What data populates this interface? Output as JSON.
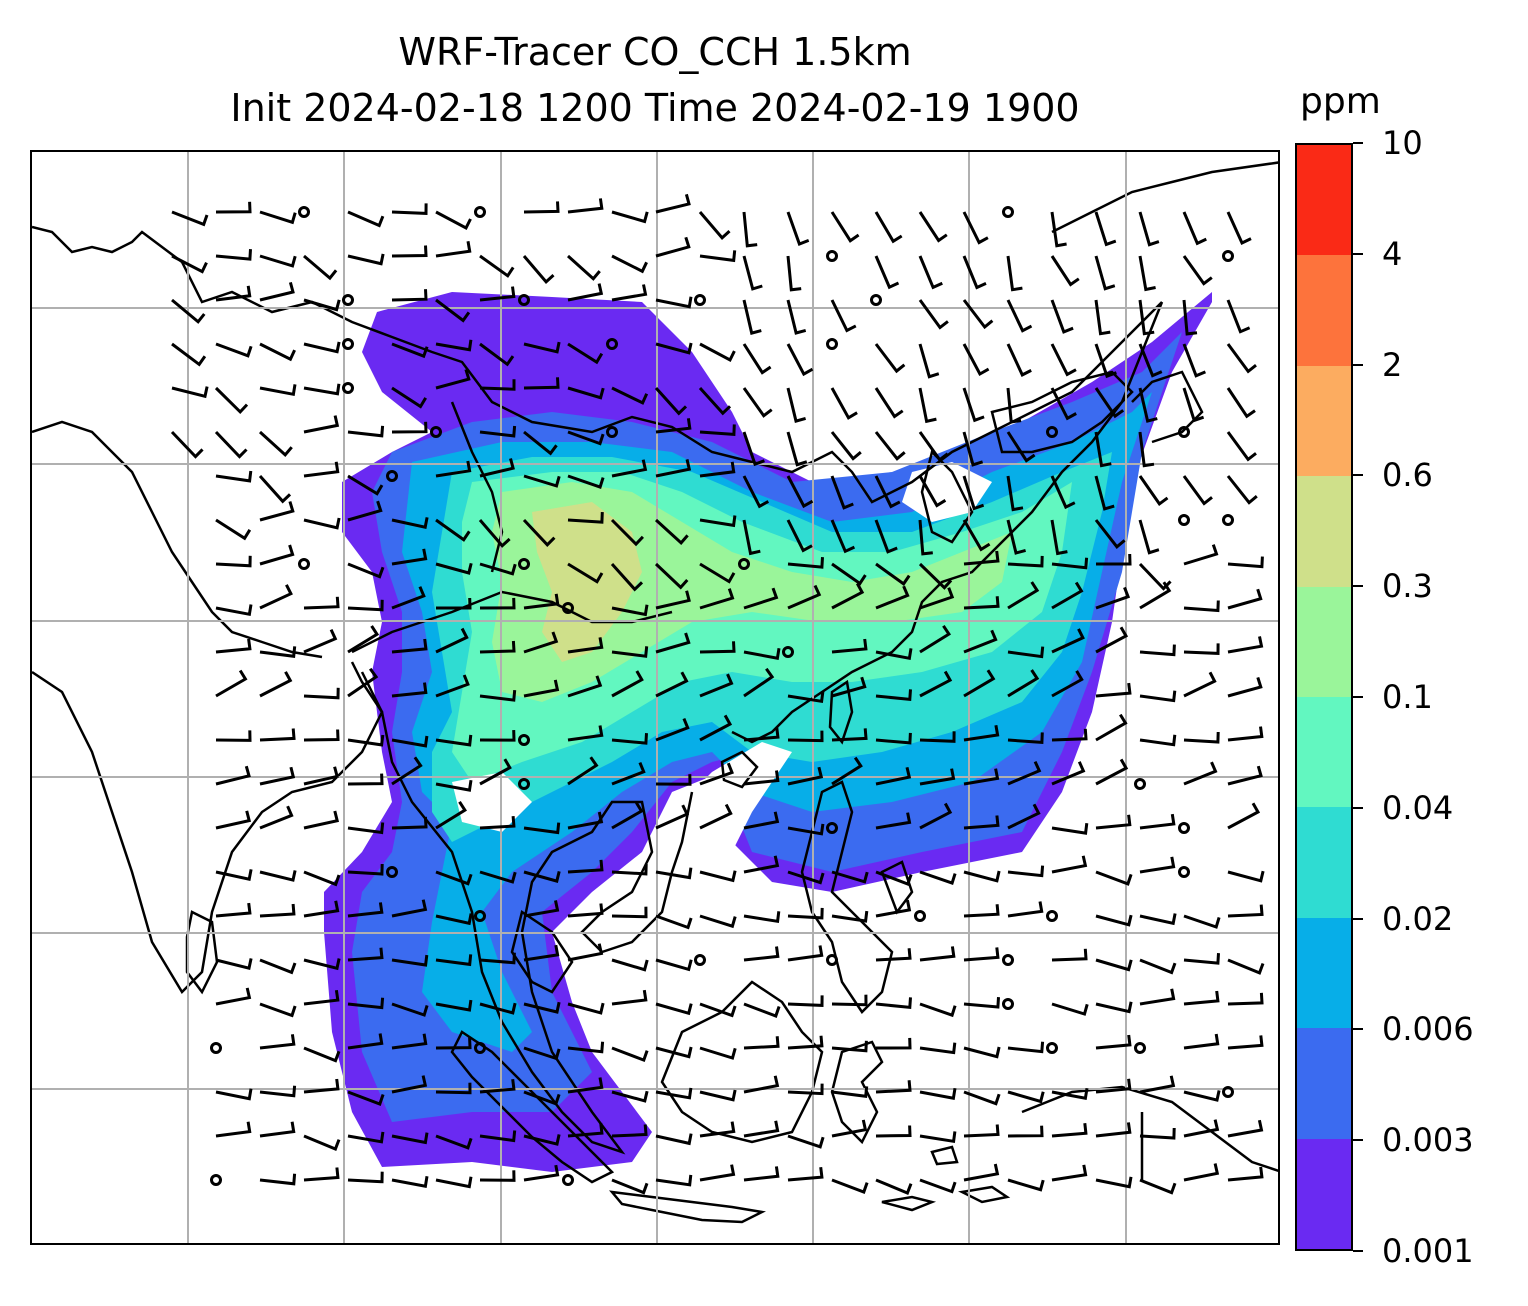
{
  "title": {
    "line1": "WRF-Tracer CO_CCH 1.5km",
    "line2": "Init 2024-02-18 1200 Time 2024-02-19 1900"
  },
  "colorbar": {
    "unit": "ppm",
    "levels": [
      "0.001",
      "0.003",
      "0.006",
      "0.02",
      "0.04",
      "0.1",
      "0.3",
      "0.6",
      "2",
      "4",
      "10"
    ],
    "colors": [
      "#6a2af2",
      "#3b6bf0",
      "#07aee8",
      "#2fdcd2",
      "#62f7c0",
      "#9af59a",
      "#cfe08a",
      "#fcac60",
      "#fd733c",
      "#fa2a16"
    ]
  },
  "map": {
    "gridline_color": "#b0b0b0",
    "coastline_color": "#000000",
    "wind_barb_color": "#000000"
  }
}
